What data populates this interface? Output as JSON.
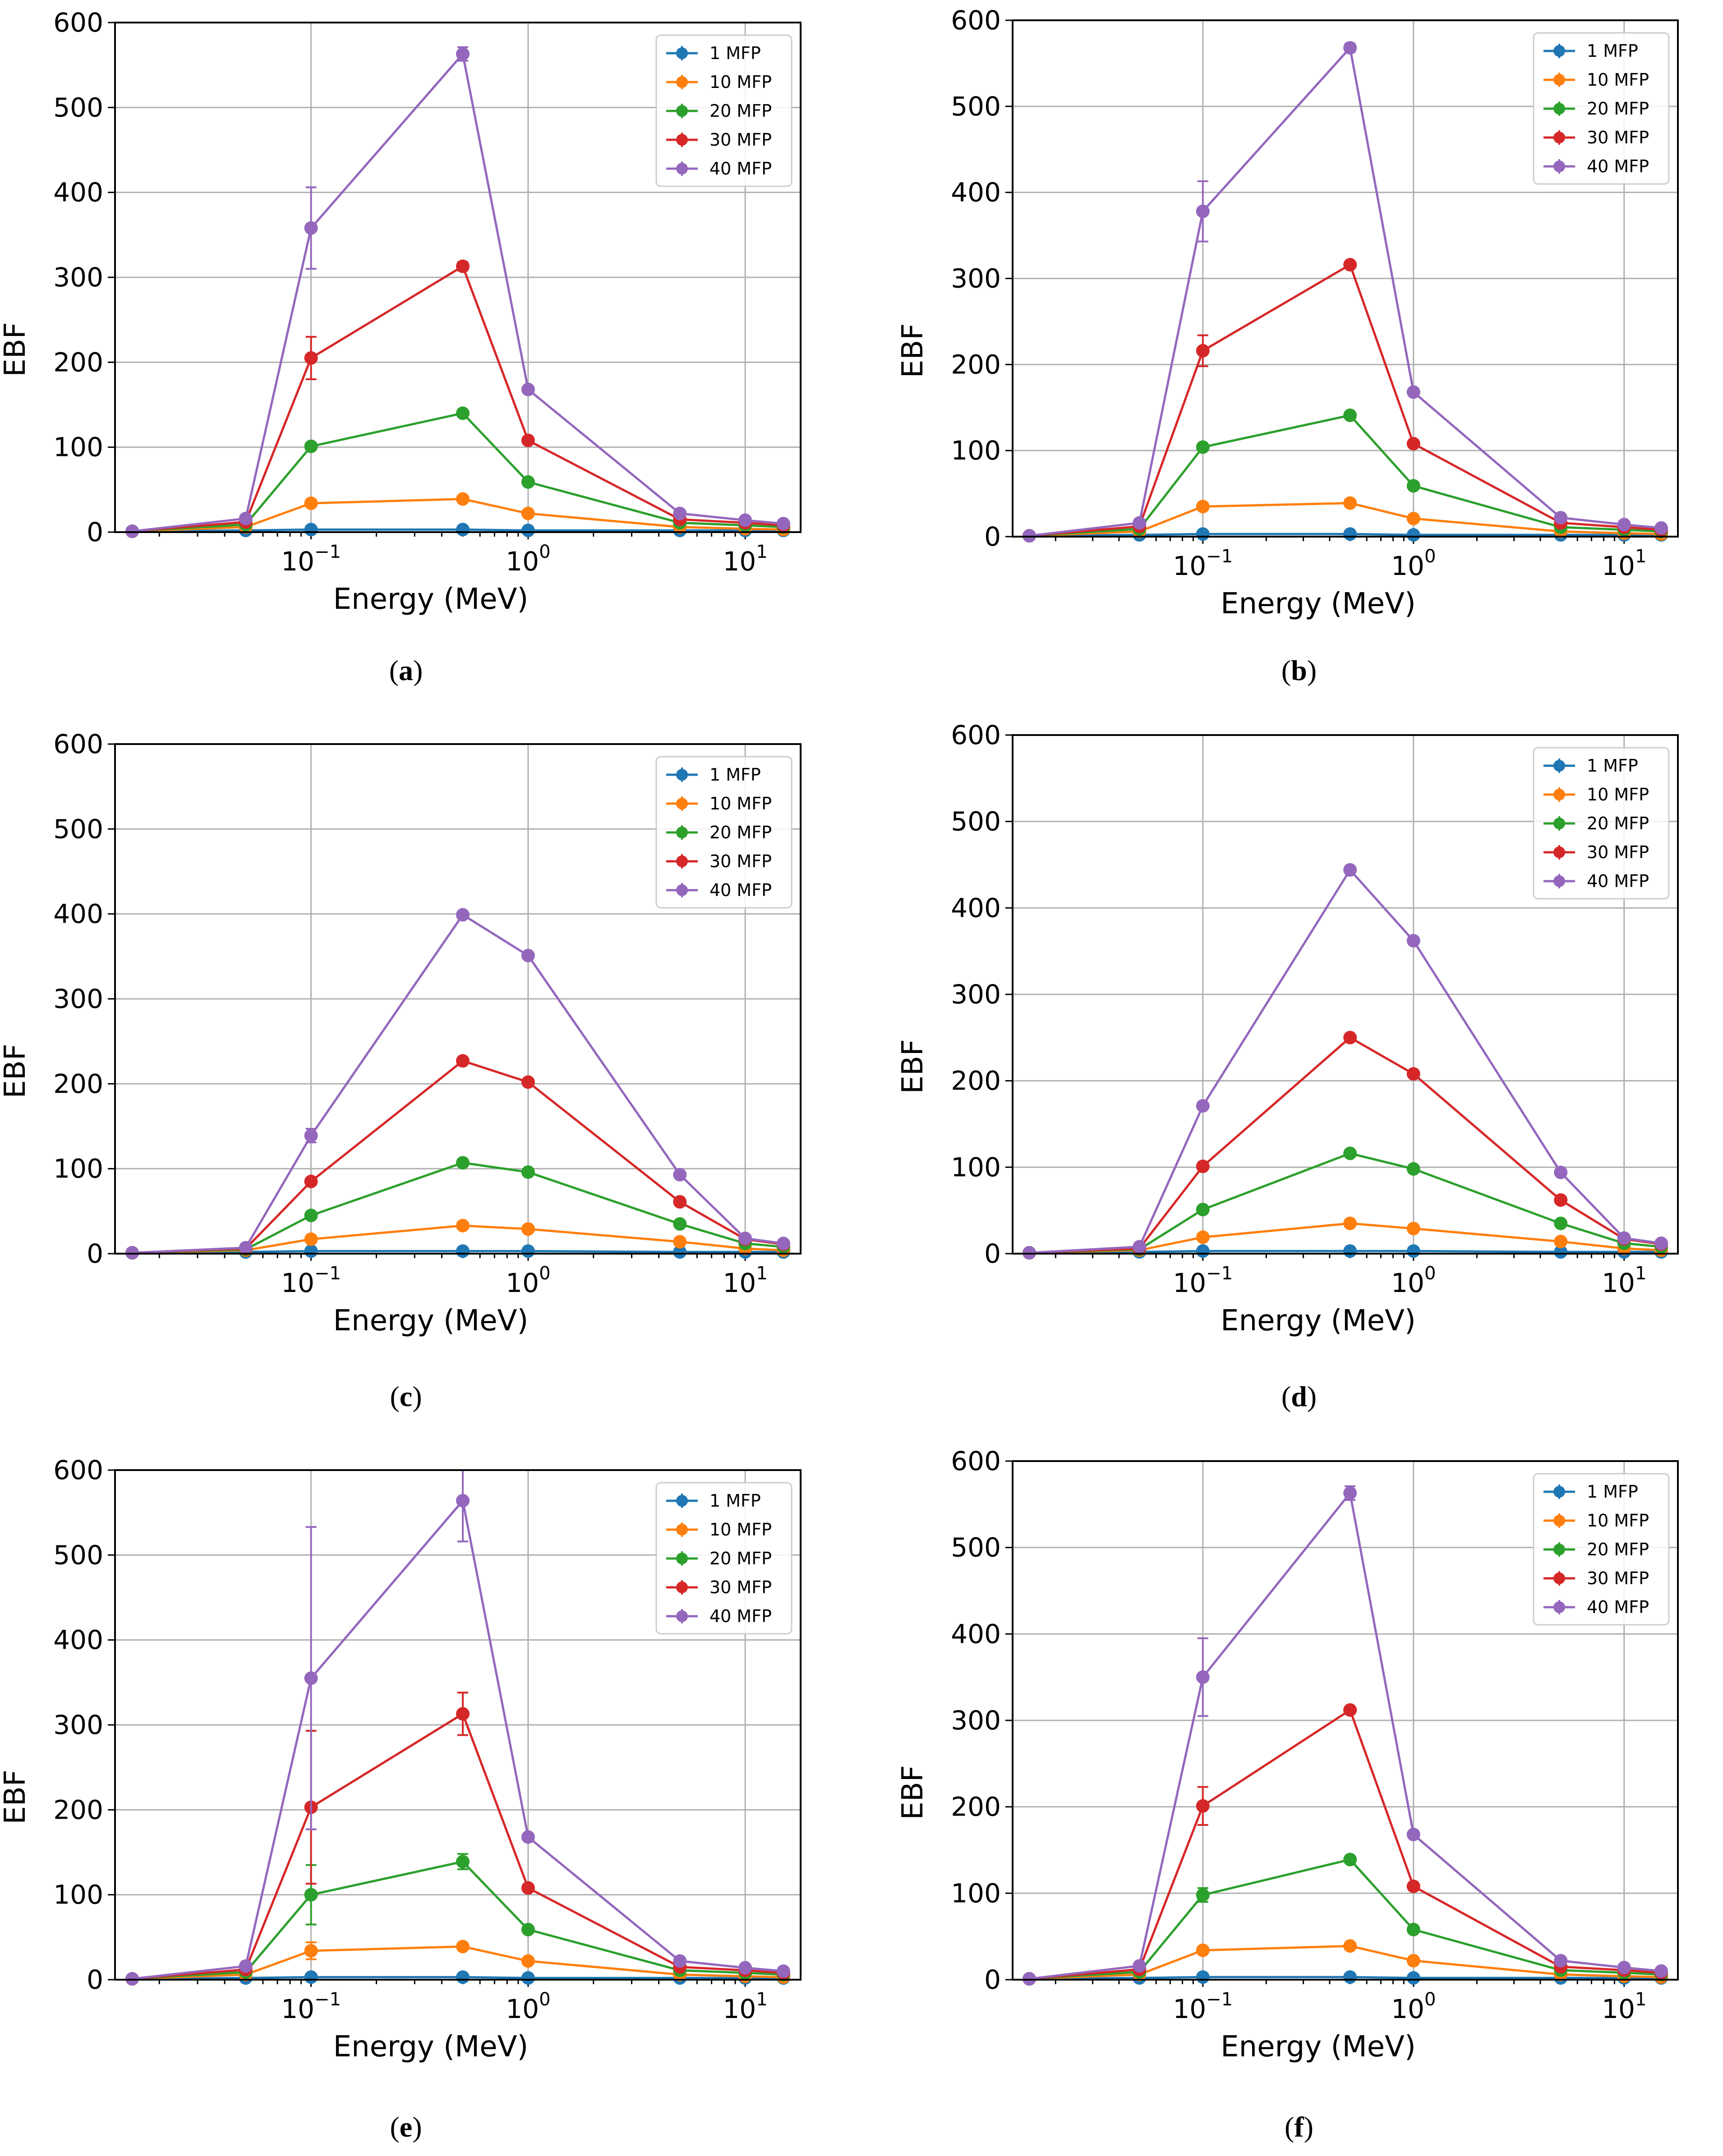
{
  "colors": {
    "1 MFP": "#1f77b4",
    "10 MFP": "#ff7f0e",
    "20 MFP": "#2ca02c",
    "30 MFP": "#d62728",
    "40 MFP": "#9467bd"
  },
  "chart_data": [
    {
      "id": "a",
      "caption": "a",
      "type": "line",
      "xscale": "log",
      "xlabel": "Energy (MeV)",
      "ylabel": "EBF",
      "ylim": [
        0,
        600
      ],
      "yticks": [
        "0",
        "100",
        "200",
        "300",
        "400",
        "500",
        "600"
      ],
      "xticks": [
        {
          "base": "10",
          "exp": "−1",
          "value": 0.1
        },
        {
          "base": "10",
          "exp": "0",
          "value": 1
        },
        {
          "base": "10",
          "exp": "1",
          "value": 10
        }
      ],
      "legend": "top-right",
      "x": [
        0.015,
        0.05,
        0.1,
        0.5,
        1,
        5,
        10,
        15
      ],
      "series": [
        {
          "name": "1 MFP",
          "values": [
            1,
            2,
            3,
            3,
            2,
            2,
            2,
            2
          ]
        },
        {
          "name": "10 MFP",
          "values": [
            1,
            6,
            34,
            39,
            22,
            6,
            4,
            3
          ]
        },
        {
          "name": "20 MFP",
          "values": [
            1,
            9,
            101,
            140,
            59,
            11,
            8,
            6
          ]
        },
        {
          "name": "30 MFP",
          "values": [
            1,
            12,
            205,
            313,
            108,
            15,
            11,
            8
          ],
          "err": [
            0,
            0,
            25,
            5,
            0,
            0,
            0,
            0
          ]
        },
        {
          "name": "40 MFP",
          "values": [
            1,
            16,
            358,
            563,
            168,
            22,
            14,
            10
          ],
          "err": [
            0,
            0,
            48,
            8,
            0,
            0,
            0,
            0
          ]
        }
      ]
    },
    {
      "id": "b",
      "caption": "b",
      "type": "line",
      "xscale": "log",
      "xlabel": "Energy (MeV)",
      "ylabel": "EBF",
      "ylim": [
        0,
        600
      ],
      "yticks": [
        "0",
        "100",
        "200",
        "300",
        "400",
        "500",
        "600"
      ],
      "xticks": [
        {
          "base": "10",
          "exp": "−1",
          "value": 0.1
        },
        {
          "base": "10",
          "exp": "0",
          "value": 1
        },
        {
          "base": "10",
          "exp": "1",
          "value": 10
        }
      ],
      "legend": "top-right",
      "x": [
        0.015,
        0.05,
        0.1,
        0.5,
        1,
        5,
        10,
        15
      ],
      "series": [
        {
          "name": "1 MFP",
          "values": [
            1,
            2,
            3,
            3,
            2,
            2,
            2,
            2
          ]
        },
        {
          "name": "10 MFP",
          "values": [
            1,
            6,
            35,
            39,
            21,
            6,
            4,
            3
          ]
        },
        {
          "name": "20 MFP",
          "values": [
            1,
            9,
            104,
            141,
            59,
            11,
            8,
            6
          ]
        },
        {
          "name": "30 MFP",
          "values": [
            1,
            12,
            216,
            316,
            108,
            16,
            11,
            8
          ],
          "err": [
            0,
            0,
            18,
            0,
            0,
            0,
            0,
            0
          ]
        },
        {
          "name": "40 MFP",
          "values": [
            1,
            16,
            378,
            568,
            168,
            22,
            14,
            10
          ],
          "err": [
            0,
            0,
            35,
            5,
            0,
            0,
            0,
            0
          ]
        }
      ]
    },
    {
      "id": "c",
      "caption": "c",
      "type": "line",
      "xscale": "log",
      "xlabel": "Energy (MeV)",
      "ylabel": "EBF",
      "ylim": [
        0,
        600
      ],
      "yticks": [
        "0",
        "100",
        "200",
        "300",
        "400",
        "500",
        "600"
      ],
      "xticks": [
        {
          "base": "10",
          "exp": "−1",
          "value": 0.1
        },
        {
          "base": "10",
          "exp": "0",
          "value": 1
        },
        {
          "base": "10",
          "exp": "1",
          "value": 10
        }
      ],
      "legend": "top-right",
      "x": [
        0.015,
        0.05,
        0.1,
        0.5,
        1,
        5,
        10,
        15
      ],
      "series": [
        {
          "name": "1 MFP",
          "values": [
            1,
            2,
            3,
            3,
            3,
            2,
            2,
            2
          ]
        },
        {
          "name": "10 MFP",
          "values": [
            1,
            4,
            17,
            33,
            29,
            14,
            6,
            4
          ]
        },
        {
          "name": "20 MFP",
          "values": [
            1,
            5,
            45,
            107,
            96,
            35,
            12,
            8
          ]
        },
        {
          "name": "30 MFP",
          "values": [
            1,
            6,
            85,
            227,
            202,
            61,
            17,
            11
          ]
        },
        {
          "name": "40 MFP",
          "values": [
            1,
            7,
            139,
            399,
            351,
            93,
            18,
            12
          ],
          "err": [
            0,
            0,
            8,
            0,
            0,
            0,
            0,
            0
          ]
        }
      ]
    },
    {
      "id": "d",
      "caption": "d",
      "type": "line",
      "xscale": "log",
      "xlabel": "Energy (MeV)",
      "ylabel": "EBF",
      "ylim": [
        0,
        600
      ],
      "yticks": [
        "0",
        "100",
        "200",
        "300",
        "400",
        "500",
        "600"
      ],
      "xticks": [
        {
          "base": "10",
          "exp": "−1",
          "value": 0.1
        },
        {
          "base": "10",
          "exp": "0",
          "value": 1
        },
        {
          "base": "10",
          "exp": "1",
          "value": 10
        }
      ],
      "legend": "top-right",
      "x": [
        0.015,
        0.05,
        0.1,
        0.5,
        1,
        5,
        10,
        15
      ],
      "series": [
        {
          "name": "1 MFP",
          "values": [
            1,
            2,
            3,
            3,
            3,
            2,
            2,
            2
          ]
        },
        {
          "name": "10 MFP",
          "values": [
            1,
            4,
            19,
            35,
            29,
            14,
            6,
            4
          ]
        },
        {
          "name": "20 MFP",
          "values": [
            1,
            5,
            51,
            116,
            98,
            35,
            12,
            8
          ]
        },
        {
          "name": "30 MFP",
          "values": [
            1,
            6,
            101,
            250,
            208,
            62,
            17,
            11
          ]
        },
        {
          "name": "40 MFP",
          "values": [
            1,
            8,
            171,
            444,
            362,
            94,
            18,
            12
          ]
        }
      ]
    },
    {
      "id": "e",
      "caption": "e",
      "type": "line",
      "xscale": "log",
      "xlabel": "Energy (MeV)",
      "ylabel": "EBF",
      "ylim": [
        0,
        600
      ],
      "yticks": [
        "0",
        "100",
        "200",
        "300",
        "400",
        "500",
        "600"
      ],
      "xticks": [
        {
          "base": "10",
          "exp": "−1",
          "value": 0.1
        },
        {
          "base": "10",
          "exp": "0",
          "value": 1
        },
        {
          "base": "10",
          "exp": "1",
          "value": 10
        }
      ],
      "legend": "top-right",
      "x": [
        0.015,
        0.05,
        0.1,
        0.5,
        1,
        5,
        10,
        15
      ],
      "series": [
        {
          "name": "1 MFP",
          "values": [
            1,
            2,
            3,
            3,
            2,
            2,
            2,
            2
          ]
        },
        {
          "name": "10 MFP",
          "values": [
            1,
            6,
            34,
            39,
            22,
            6,
            4,
            3
          ],
          "err": [
            0,
            0,
            10,
            3,
            0,
            0,
            0,
            0
          ]
        },
        {
          "name": "20 MFP",
          "values": [
            1,
            9,
            100,
            139,
            59,
            11,
            8,
            6
          ],
          "err": [
            0,
            0,
            35,
            9,
            0,
            0,
            0,
            0
          ]
        },
        {
          "name": "30 MFP",
          "values": [
            1,
            12,
            203,
            313,
            108,
            15,
            11,
            8
          ],
          "err": [
            0,
            0,
            90,
            25,
            0,
            0,
            0,
            0
          ]
        },
        {
          "name": "40 MFP",
          "values": [
            1,
            16,
            355,
            564,
            168,
            22,
            14,
            10
          ],
          "err": [
            0,
            0,
            178,
            48,
            0,
            0,
            0,
            0
          ]
        }
      ]
    },
    {
      "id": "f",
      "caption": "f",
      "type": "line",
      "xscale": "log",
      "xlabel": "Energy (MeV)",
      "ylabel": "EBF",
      "ylim": [
        0,
        600
      ],
      "yticks": [
        "0",
        "100",
        "200",
        "300",
        "400",
        "500",
        "600"
      ],
      "xticks": [
        {
          "base": "10",
          "exp": "−1",
          "value": 0.1
        },
        {
          "base": "10",
          "exp": "0",
          "value": 1
        },
        {
          "base": "10",
          "exp": "1",
          "value": 10
        }
      ],
      "legend": "top-right",
      "x": [
        0.015,
        0.05,
        0.1,
        0.5,
        1,
        5,
        10,
        15
      ],
      "series": [
        {
          "name": "1 MFP",
          "values": [
            1,
            2,
            3,
            3,
            2,
            2,
            2,
            2
          ]
        },
        {
          "name": "10 MFP",
          "values": [
            1,
            6,
            34,
            39,
            22,
            6,
            4,
            3
          ]
        },
        {
          "name": "20 MFP",
          "values": [
            1,
            9,
            98,
            139,
            58,
            11,
            8,
            6
          ],
          "err": [
            0,
            0,
            8,
            0,
            0,
            0,
            0,
            0
          ]
        },
        {
          "name": "30 MFP",
          "values": [
            1,
            12,
            201,
            312,
            108,
            15,
            11,
            8
          ],
          "err": [
            0,
            0,
            22,
            0,
            0,
            0,
            0,
            0
          ]
        },
        {
          "name": "40 MFP",
          "values": [
            1,
            16,
            350,
            563,
            168,
            22,
            14,
            10
          ],
          "err": [
            0,
            0,
            45,
            8,
            0,
            0,
            0,
            0
          ]
        }
      ]
    }
  ]
}
